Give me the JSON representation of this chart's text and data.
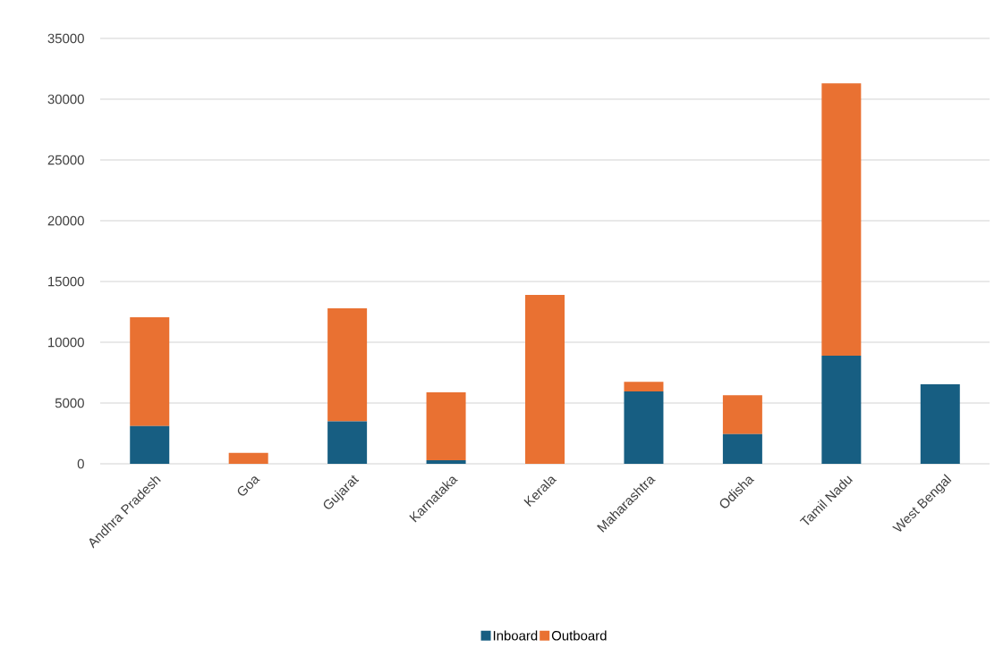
{
  "chart_data": {
    "type": "bar",
    "stacked": true,
    "categories": [
      "Andhra Pradesh",
      "Goa",
      "Gujarat",
      "Karnataka",
      "Kerala",
      "Maharashtra",
      "Odisha",
      "Tamil Nadu",
      "West Bengal"
    ],
    "series": [
      {
        "name": "Inboard",
        "color": "#175e82",
        "values": [
          3100,
          0,
          3500,
          300,
          0,
          5950,
          2450,
          8900,
          6550
        ]
      },
      {
        "name": "Outboard",
        "color": "#e97132",
        "values": [
          8950,
          900,
          9300,
          5580,
          13900,
          800,
          3200,
          22400,
          0
        ]
      }
    ],
    "ylim": [
      0,
      35000
    ],
    "yticks": [
      0,
      5000,
      10000,
      15000,
      20000,
      25000,
      30000,
      35000
    ],
    "grid": "y",
    "legend": "bottom"
  }
}
